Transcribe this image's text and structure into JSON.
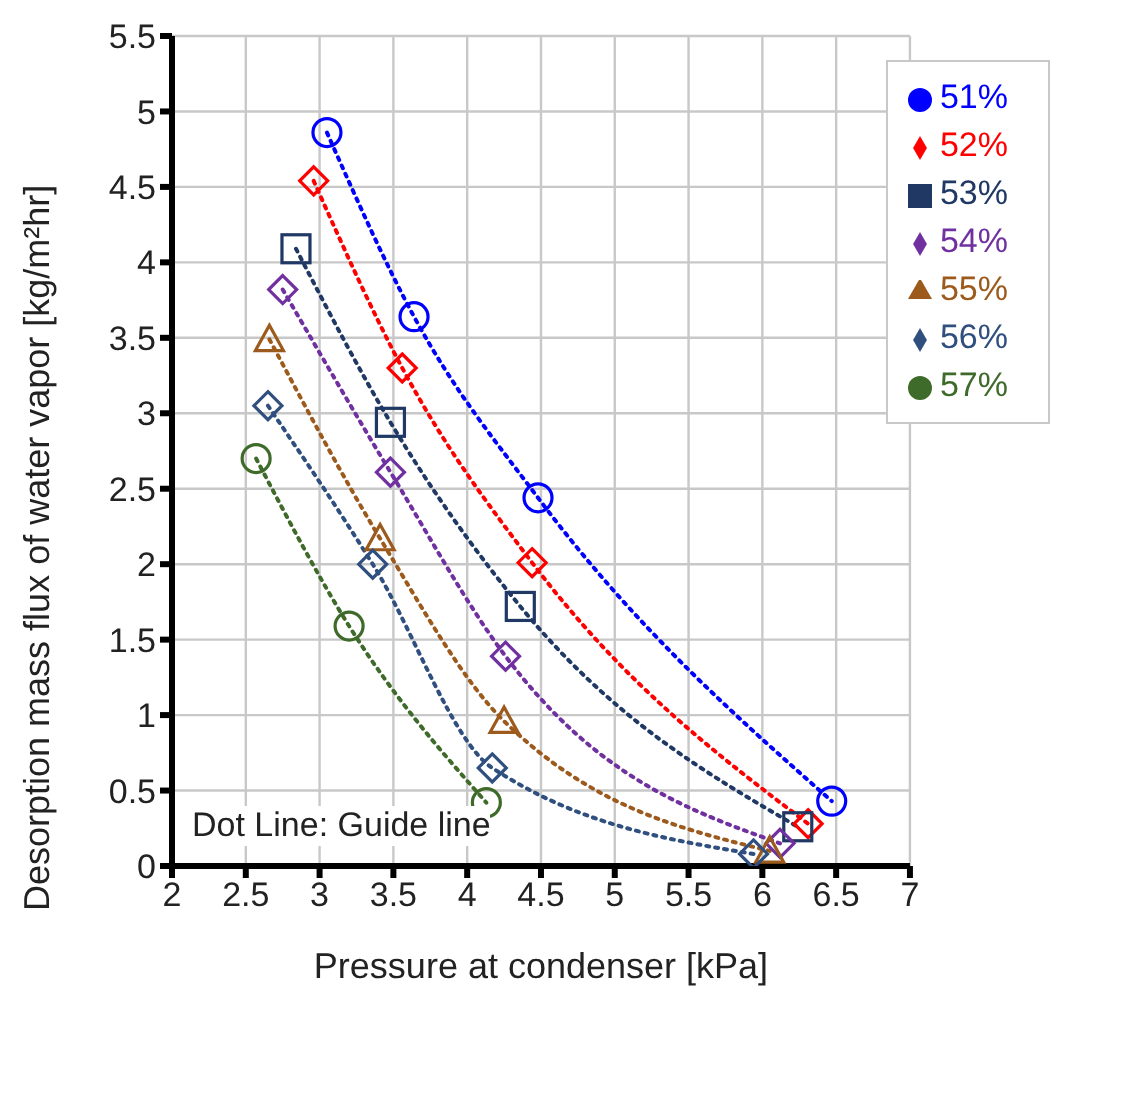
{
  "chart_data": {
    "type": "line",
    "xlabel": "Pressure at condenser [kPa]",
    "ylabel": "Desorption mass flux of water vapor [kg/m²hr]",
    "xlim": [
      2,
      7
    ],
    "xticks": [
      2,
      2.5,
      3,
      3.5,
      4,
      4.5,
      5,
      5.5,
      6,
      6.5,
      7
    ],
    "ylim": [
      0,
      5.5
    ],
    "yticks": [
      0,
      0.5,
      1,
      1.5,
      2,
      2.5,
      3,
      3.5,
      4,
      4.5,
      5,
      5.5
    ],
    "grid": true,
    "legend": "top right",
    "line_style": "dotted",
    "annotations": [
      "Dot Line: Guide line"
    ],
    "series": [
      {
        "name": "51%",
        "color": "#0000ff",
        "marker": "circle",
        "x": [
          3.05,
          3.64,
          4.48,
          6.47
        ],
        "values": [
          4.86,
          3.64,
          2.44,
          0.43
        ]
      },
      {
        "name": "52%",
        "color": "#ff0000",
        "marker": "diamond",
        "x": [
          2.96,
          3.56,
          4.44,
          6.31
        ],
        "values": [
          4.54,
          3.3,
          2.01,
          0.28
        ]
      },
      {
        "name": "53%",
        "color": "#1f3864",
        "marker": "square",
        "x": [
          2.84,
          3.48,
          4.36,
          6.24
        ],
        "values": [
          4.09,
          2.94,
          1.72,
          0.26
        ]
      },
      {
        "name": "54%",
        "color": "#7030a0",
        "marker": "diamond",
        "x": [
          2.75,
          3.48,
          4.26,
          6.12
        ],
        "values": [
          3.82,
          2.61,
          1.39,
          0.15
        ]
      },
      {
        "name": "55%",
        "color": "#9c5a1c",
        "marker": "triangle",
        "x": [
          2.66,
          3.41,
          4.25,
          6.05
        ],
        "values": [
          3.49,
          2.17,
          0.96,
          0.1
        ]
      },
      {
        "name": "56%",
        "color": "#2f4f7f",
        "marker": "diamond",
        "x": [
          2.65,
          3.36,
          4.17,
          5.94
        ],
        "values": [
          3.05,
          2.0,
          0.65,
          0.08
        ]
      },
      {
        "name": "57%",
        "color": "#3f6b2a",
        "marker": "circle",
        "x": [
          2.57,
          3.2,
          4.13
        ],
        "values": [
          2.7,
          1.59,
          0.42
        ]
      }
    ]
  }
}
